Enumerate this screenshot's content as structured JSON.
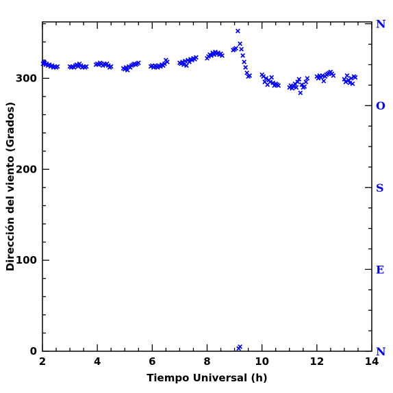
{
  "chart_data": {
    "type": "scatter",
    "title": "",
    "xlabel": "Tiempo Universal (h)",
    "ylabel": "Dirección del viento (Grados)",
    "xlim": [
      2,
      14
    ],
    "ylim": [
      0,
      362
    ],
    "x_ticks": [
      2,
      4,
      6,
      8,
      10,
      12,
      14
    ],
    "y_ticks": [
      0,
      100,
      200,
      300
    ],
    "x_tick_labels": [
      "2",
      "4",
      "6",
      "8",
      "10",
      "12",
      "14"
    ],
    "y_tick_labels": [
      "0",
      "100",
      "200",
      "300"
    ],
    "right_axis_labels": [
      {
        "value": 0,
        "label": "N"
      },
      {
        "value": 90,
        "label": "E"
      },
      {
        "value": 180,
        "label": "S"
      },
      {
        "value": 270,
        "label": "O"
      },
      {
        "value": 360,
        "label": "N"
      }
    ],
    "marker": "x",
    "color": "#0000ff",
    "grid": false,
    "points": [
      [
        2.02,
        316
      ],
      [
        2.05,
        318
      ],
      [
        2.08,
        317
      ],
      [
        2.12,
        315
      ],
      [
        2.15,
        316
      ],
      [
        2.2,
        314
      ],
      [
        2.25,
        315
      ],
      [
        2.3,
        313
      ],
      [
        2.35,
        314
      ],
      [
        2.4,
        312
      ],
      [
        2.45,
        313
      ],
      [
        2.5,
        312
      ],
      [
        2.55,
        313
      ],
      [
        3.0,
        313
      ],
      [
        3.05,
        312
      ],
      [
        3.1,
        313
      ],
      [
        3.15,
        312
      ],
      [
        3.2,
        314
      ],
      [
        3.25,
        315
      ],
      [
        3.3,
        313
      ],
      [
        3.35,
        316
      ],
      [
        3.4,
        314
      ],
      [
        3.45,
        312
      ],
      [
        3.5,
        313
      ],
      [
        3.55,
        312
      ],
      [
        3.6,
        313
      ],
      [
        3.95,
        315
      ],
      [
        4.0,
        316
      ],
      [
        4.05,
        315
      ],
      [
        4.1,
        317
      ],
      [
        4.15,
        316
      ],
      [
        4.2,
        314
      ],
      [
        4.25,
        316
      ],
      [
        4.3,
        315
      ],
      [
        4.35,
        316
      ],
      [
        4.4,
        314
      ],
      [
        4.45,
        312
      ],
      [
        4.5,
        313
      ],
      [
        4.95,
        311
      ],
      [
        5.0,
        310
      ],
      [
        5.05,
        312
      ],
      [
        5.1,
        309
      ],
      [
        5.15,
        313
      ],
      [
        5.2,
        312
      ],
      [
        5.25,
        314
      ],
      [
        5.3,
        315
      ],
      [
        5.35,
        316
      ],
      [
        5.4,
        315
      ],
      [
        5.45,
        316
      ],
      [
        5.5,
        317
      ],
      [
        5.95,
        313
      ],
      [
        6.0,
        314
      ],
      [
        6.05,
        312
      ],
      [
        6.1,
        314
      ],
      [
        6.15,
        313
      ],
      [
        6.2,
        312
      ],
      [
        6.25,
        314
      ],
      [
        6.3,
        313
      ],
      [
        6.35,
        315
      ],
      [
        6.4,
        314
      ],
      [
        6.45,
        316
      ],
      [
        6.5,
        320
      ],
      [
        6.55,
        318
      ],
      [
        7.0,
        317
      ],
      [
        7.05,
        316
      ],
      [
        7.1,
        318
      ],
      [
        7.15,
        315
      ],
      [
        7.2,
        319
      ],
      [
        7.25,
        314
      ],
      [
        7.3,
        320
      ],
      [
        7.35,
        318
      ],
      [
        7.4,
        321
      ],
      [
        7.45,
        320
      ],
      [
        7.5,
        322
      ],
      [
        7.55,
        321
      ],
      [
        7.6,
        323
      ],
      [
        8.0,
        322
      ],
      [
        8.05,
        324
      ],
      [
        8.1,
        326
      ],
      [
        8.15,
        325
      ],
      [
        8.2,
        328
      ],
      [
        8.25,
        326
      ],
      [
        8.3,
        329
      ],
      [
        8.35,
        327
      ],
      [
        8.4,
        328
      ],
      [
        8.45,
        326
      ],
      [
        8.5,
        327
      ],
      [
        8.55,
        325
      ],
      [
        8.95,
        331
      ],
      [
        9.0,
        332
      ],
      [
        9.05,
        333
      ],
      [
        9.12,
        352
      ],
      [
        9.2,
        338
      ],
      [
        9.25,
        332
      ],
      [
        9.3,
        325
      ],
      [
        9.35,
        318
      ],
      [
        9.4,
        312
      ],
      [
        9.45,
        306
      ],
      [
        9.5,
        302
      ],
      [
        9.55,
        303
      ],
      [
        9.15,
        3
      ],
      [
        9.2,
        5
      ],
      [
        10.0,
        304
      ],
      [
        10.05,
        302
      ],
      [
        10.1,
        296
      ],
      [
        10.15,
        300
      ],
      [
        10.2,
        293
      ],
      [
        10.25,
        298
      ],
      [
        10.3,
        296
      ],
      [
        10.35,
        301
      ],
      [
        10.4,
        295
      ],
      [
        10.45,
        292
      ],
      [
        10.5,
        294
      ],
      [
        10.55,
        293
      ],
      [
        10.6,
        292
      ],
      [
        11.0,
        290
      ],
      [
        11.05,
        292
      ],
      [
        11.1,
        289
      ],
      [
        11.15,
        291
      ],
      [
        11.2,
        294
      ],
      [
        11.25,
        290
      ],
      [
        11.3,
        296
      ],
      [
        11.35,
        299
      ],
      [
        11.4,
        284
      ],
      [
        11.45,
        293
      ],
      [
        11.5,
        290
      ],
      [
        11.55,
        291
      ],
      [
        11.6,
        296
      ],
      [
        11.65,
        300
      ],
      [
        12.0,
        302
      ],
      [
        12.05,
        300
      ],
      [
        12.1,
        303
      ],
      [
        12.15,
        301
      ],
      [
        12.2,
        303
      ],
      [
        12.25,
        297
      ],
      [
        12.3,
        302
      ],
      [
        12.35,
        304
      ],
      [
        12.4,
        305
      ],
      [
        12.45,
        306
      ],
      [
        12.5,
        307
      ],
      [
        12.55,
        305
      ],
      [
        12.6,
        303
      ],
      [
        13.0,
        299
      ],
      [
        13.05,
        296
      ],
      [
        13.1,
        303
      ],
      [
        13.15,
        298
      ],
      [
        13.2,
        295
      ],
      [
        13.25,
        300
      ],
      [
        13.3,
        294
      ],
      [
        13.35,
        302
      ],
      [
        13.4,
        301
      ]
    ]
  }
}
